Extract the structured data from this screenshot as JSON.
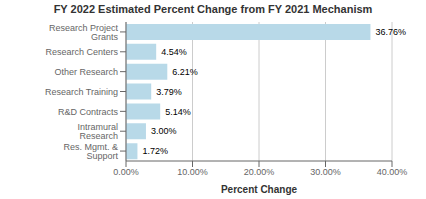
{
  "chart_data": {
    "type": "bar",
    "orientation": "horizontal",
    "title": "FY 2022 Estimated Percent Change from FY 2021 Mechanism",
    "xlabel": "Percent Change",
    "categories": [
      "Res. Mgmt. & Support",
      "Intramural Research",
      "R&D Contracts",
      "Research Training",
      "Other Research",
      "Research Centers",
      "Research Project Grants"
    ],
    "values": [
      1.72,
      3.0,
      5.14,
      3.79,
      6.21,
      4.54,
      36.76
    ],
    "value_labels": [
      "1.72%",
      "3.00%",
      "5.14%",
      "3.79%",
      "6.21%",
      "4.54%",
      "36.76%"
    ],
    "data_labels": true,
    "color": "#b8d9e8",
    "xlim": [
      0,
      40
    ],
    "xticks": [
      {
        "value": 0,
        "label": "0.00%"
      },
      {
        "value": 10,
        "label": "10.00%"
      },
      {
        "value": 20,
        "label": "20.00%"
      },
      {
        "value": 30,
        "label": "30.00%"
      },
      {
        "value": 40,
        "label": "40.00%"
      }
    ],
    "grid": true
  }
}
